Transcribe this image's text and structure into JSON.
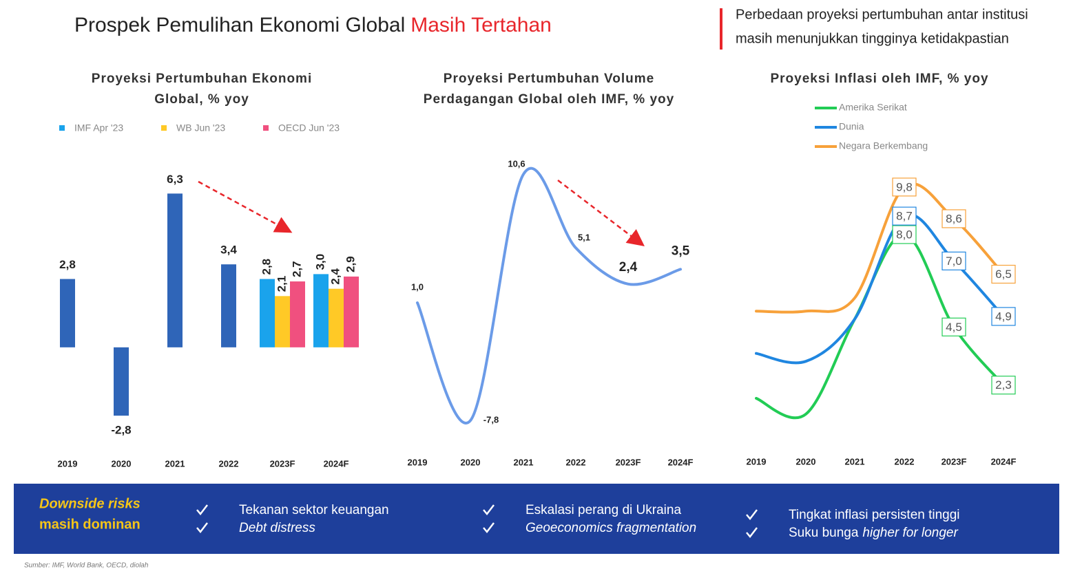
{
  "header": {
    "title": "Prospek Pemulihan Ekonomi Global",
    "title_highlight": "Masih Tertahan",
    "note": [
      "Perbedaan proyeksi pertumbuhan antar institusi",
      "masih menunjukkan tingginya ketidakpastian"
    ]
  },
  "chart_data": [
    {
      "type": "bar",
      "title": [
        "Proyeksi Pertumbuhan Ekonomi",
        "Global, % yoy"
      ],
      "categories": [
        "2019",
        "2020",
        "2021",
        "2022",
        "2023F",
        "2024F"
      ],
      "values": [
        2.8,
        -2.8,
        6.3,
        3.4,
        null,
        null
      ],
      "value_labels": [
        "2,8",
        "-2,8",
        "6,3",
        "3,4",
        null,
        null
      ],
      "color": "#2f65b8",
      "series": [
        {
          "name": "IMF Apr '23",
          "color": "#1aa3ec",
          "values": [
            null,
            null,
            null,
            null,
            2.8,
            3.0
          ],
          "value_labels": [
            null,
            null,
            null,
            null,
            "2,8",
            "3,0"
          ]
        },
        {
          "name": "WB Jun '23",
          "color": "#ffc926",
          "values": [
            null,
            null,
            null,
            null,
            2.1,
            2.4
          ],
          "value_labels": [
            null,
            null,
            null,
            null,
            "2,1",
            "2,4"
          ]
        },
        {
          "name": "OECD Jun '23",
          "color": "#f0507f",
          "values": [
            null,
            null,
            null,
            null,
            2.7,
            2.9
          ],
          "value_labels": [
            null,
            null,
            null,
            null,
            "2,7",
            "2,9"
          ]
        }
      ],
      "ylim": [
        -3.5,
        7
      ]
    },
    {
      "type": "line",
      "title": [
        "Proyeksi Pertumbuhan Volume",
        "Perdagangan Global oleh IMF, % yoy"
      ],
      "categories": [
        "2019",
        "2020",
        "2021",
        "2022",
        "2023F",
        "2024F"
      ],
      "values": [
        1.0,
        -7.8,
        10.6,
        5.1,
        2.4,
        3.5
      ],
      "value_labels": [
        "1,0",
        "-7,8",
        "10,6",
        "5,1",
        "2,4",
        "3,5"
      ],
      "color": "#6b9be8",
      "ylim": [
        -9,
        12
      ]
    },
    {
      "type": "line",
      "title": [
        "Proyeksi Inflasi oleh IMF, % yoy"
      ],
      "categories": [
        "2019",
        "2020",
        "2021",
        "2022",
        "2023F",
        "2024F"
      ],
      "series": [
        {
          "name": "Amerika Serikat",
          "color": "#22cc55",
          "values": [
            1.8,
            1.2,
            4.8,
            8.0,
            4.5,
            2.3
          ],
          "value_labels": [
            null,
            null,
            null,
            "8,0",
            "4,5",
            "2,3"
          ]
        },
        {
          "name": "Dunia",
          "color": "#1f86e0",
          "values": [
            3.5,
            3.2,
            4.8,
            8.7,
            7.0,
            4.9
          ],
          "value_labels": [
            null,
            null,
            null,
            "8,7",
            "7,0",
            "4,9"
          ]
        },
        {
          "name": "Negara Berkembang",
          "color": "#f7a13a",
          "values": [
            5.1,
            5.1,
            5.6,
            9.8,
            8.6,
            6.5
          ],
          "value_labels": [
            null,
            null,
            null,
            "9,8",
            "8,6",
            "6,5"
          ]
        }
      ],
      "ylim": [
        0,
        10.5
      ]
    }
  ],
  "banner": {
    "heading": [
      "Downside risks",
      "masih dominan"
    ],
    "groups": [
      [
        [
          {
            "text": "Tekanan sektor keuangan"
          }
        ],
        [
          {
            "text": "Debt distress",
            "italic": true
          }
        ]
      ],
      [
        [
          {
            "text": "Eskalasi perang di Ukraina"
          }
        ],
        [
          {
            "text": "Geoeconomics fragmentation",
            "italic": true
          }
        ]
      ],
      [
        [
          {
            "text": "Tingkat inflasi persisten tinggi"
          }
        ],
        [
          {
            "text": "Suku bunga"
          },
          {
            "text": "higher for longer",
            "italic": true
          }
        ]
      ]
    ]
  },
  "source": "Sumber: IMF, World Bank, OECD, diolah"
}
